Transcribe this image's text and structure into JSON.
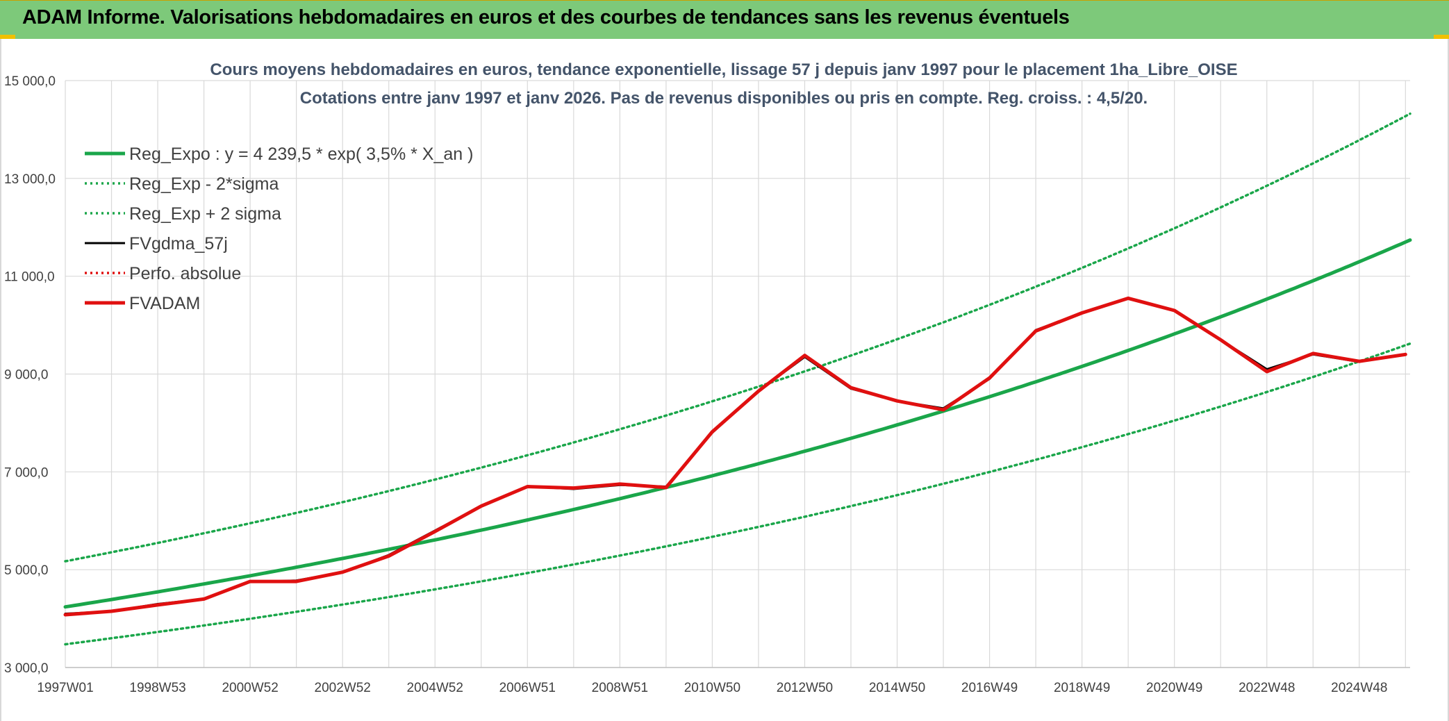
{
  "header": {
    "title": "ADAM Informe. Valorisations hebdomadaires en euros et des courbes de tendances sans les revenus éventuels"
  },
  "colors": {
    "header_bg": "#7dc97a",
    "reg_green": "#1aa64a",
    "fv_red": "#e01010",
    "fv_black": "#000000"
  },
  "chart_data": {
    "type": "line",
    "title_line1": "Cours moyens hebdomadaires en euros, tendance exponentielle, lissage 57 j depuis janv 1997 pour le placement 1ha_Libre_OISE",
    "title_line2": "Cotations entre janv 1997 et janv 2026. Pas de revenus disponibles ou pris en compte. Reg. croiss. : 4,5/20.",
    "xlabel": "",
    "ylabel": "",
    "ylim": [
      3000,
      15000
    ],
    "yticks": [
      3000,
      5000,
      7000,
      9000,
      11000,
      13000,
      15000
    ],
    "ytick_labels": [
      "3 000,0",
      "5 000,0",
      "7 000,0",
      "9 000,0",
      "11 000,0",
      "13 000,0",
      "15 000,0"
    ],
    "xlim": [
      1997.0,
      2026.1
    ],
    "xtick_labels": [
      "1997W01",
      "1998W53",
      "2000W52",
      "2002W52",
      "2004W52",
      "2006W51",
      "2008W51",
      "2010W50",
      "2012W50",
      "2014W50",
      "2016W49",
      "2018W49",
      "2020W49",
      "2022W48",
      "2024W48"
    ],
    "xtick_years": [
      1997.0,
      1999.0,
      2001.0,
      2003.0,
      2005.0,
      2007.0,
      2009.0,
      2011.0,
      2013.0,
      2015.0,
      2017.0,
      2019.0,
      2021.0,
      2023.0,
      2025.0
    ],
    "grid": true,
    "legend_position": "top-left",
    "regression": {
      "a": 4239.5,
      "rate": 0.035,
      "sigma_factor": 1.22
    },
    "series": [
      {
        "name": "Reg_Expo : y = 4 239,5 * exp( 3,5% *  X_an )",
        "style": "solid-thick",
        "color": "#1aa64a",
        "kind": "regression"
      },
      {
        "name": "Reg_Exp - 2*sigma",
        "style": "dotted",
        "color": "#1aa64a",
        "kind": "lower"
      },
      {
        "name": "Reg_Exp + 2 sigma",
        "style": "dotted",
        "color": "#1aa64a",
        "kind": "upper"
      },
      {
        "name": "FVgdma_57j",
        "style": "solid",
        "color": "#000000",
        "kind": "data",
        "x": [
          1997.0,
          1998.0,
          1999.0,
          2000.0,
          2001.0,
          2002.0,
          2003.0,
          2004.0,
          2005.0,
          2006.0,
          2007.0,
          2008.0,
          2009.0,
          2010.0,
          2011.0,
          2012.0,
          2013.0,
          2014.0,
          2015.0,
          2016.0,
          2017.0,
          2018.0,
          2019.0,
          2020.0,
          2021.0,
          2022.0,
          2023.0,
          2024.0,
          2025.0,
          2026.0
        ],
        "y": [
          4100,
          4150,
          4300,
          4400,
          4750,
          4780,
          4950,
          5300,
          5800,
          6300,
          6700,
          6650,
          6730,
          6700,
          7800,
          8650,
          9350,
          8700,
          8450,
          8300,
          8900,
          9900,
          10250,
          10550,
          10300,
          9700,
          9100,
          9400,
          9250,
          9400
        ]
      },
      {
        "name": "Perfo. absolue",
        "style": "dotted",
        "color": "#e01010",
        "kind": "none"
      },
      {
        "name": "FVADAM",
        "style": "solid-thick",
        "color": "#e01010",
        "kind": "data",
        "x": [
          1997.0,
          1998.0,
          1999.0,
          2000.0,
          2001.0,
          2002.0,
          2003.0,
          2004.0,
          2005.0,
          2006.0,
          2007.0,
          2008.0,
          2009.0,
          2010.0,
          2011.0,
          2012.0,
          2013.0,
          2014.0,
          2015.0,
          2016.0,
          2017.0,
          2018.0,
          2019.0,
          2020.0,
          2021.0,
          2022.0,
          2023.0,
          2024.0,
          2025.0,
          2026.0
        ],
        "y": [
          4080,
          4150,
          4280,
          4400,
          4760,
          4760,
          4950,
          5280,
          5780,
          6300,
          6700,
          6670,
          6750,
          6680,
          7820,
          8650,
          9380,
          8720,
          8450,
          8270,
          8920,
          9880,
          10250,
          10550,
          10300,
          9700,
          9050,
          9420,
          9260,
          9400
        ]
      }
    ]
  }
}
